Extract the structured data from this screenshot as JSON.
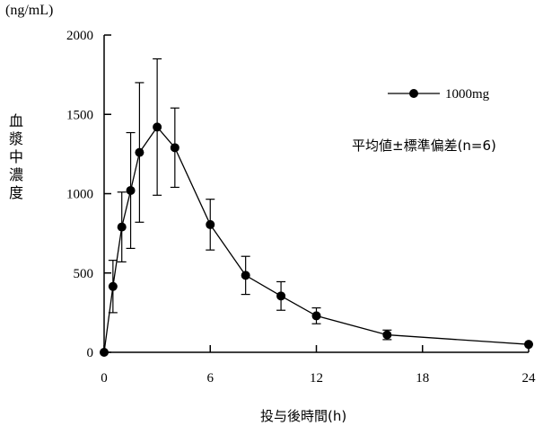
{
  "chart_data": {
    "type": "line",
    "unit_label": "(ng/mL)",
    "ylabel_chars": [
      "血",
      "漿",
      "中",
      "濃",
      "度"
    ],
    "xlabel": "投与後時間(h)",
    "xlim": [
      0,
      24
    ],
    "ylim": [
      0,
      2000
    ],
    "x_ticks": [
      0,
      6,
      12,
      18,
      24
    ],
    "y_ticks": [
      0,
      500,
      1000,
      1500,
      2000
    ],
    "grid": false,
    "legend_position": "top-right",
    "stat_note": "平均値±標準偏差(n=6)",
    "series": [
      {
        "name": "1000mg",
        "color": "#000000",
        "x": [
          0,
          0.5,
          1,
          1.5,
          2,
          3,
          4,
          6,
          8,
          10,
          12,
          16,
          24
        ],
        "y": [
          0,
          415,
          790,
          1020,
          1260,
          1420,
          1290,
          805,
          485,
          355,
          230,
          110,
          50
        ],
        "err": [
          0,
          165,
          220,
          365,
          440,
          430,
          250,
          160,
          120,
          90,
          50,
          30,
          0
        ]
      }
    ]
  }
}
